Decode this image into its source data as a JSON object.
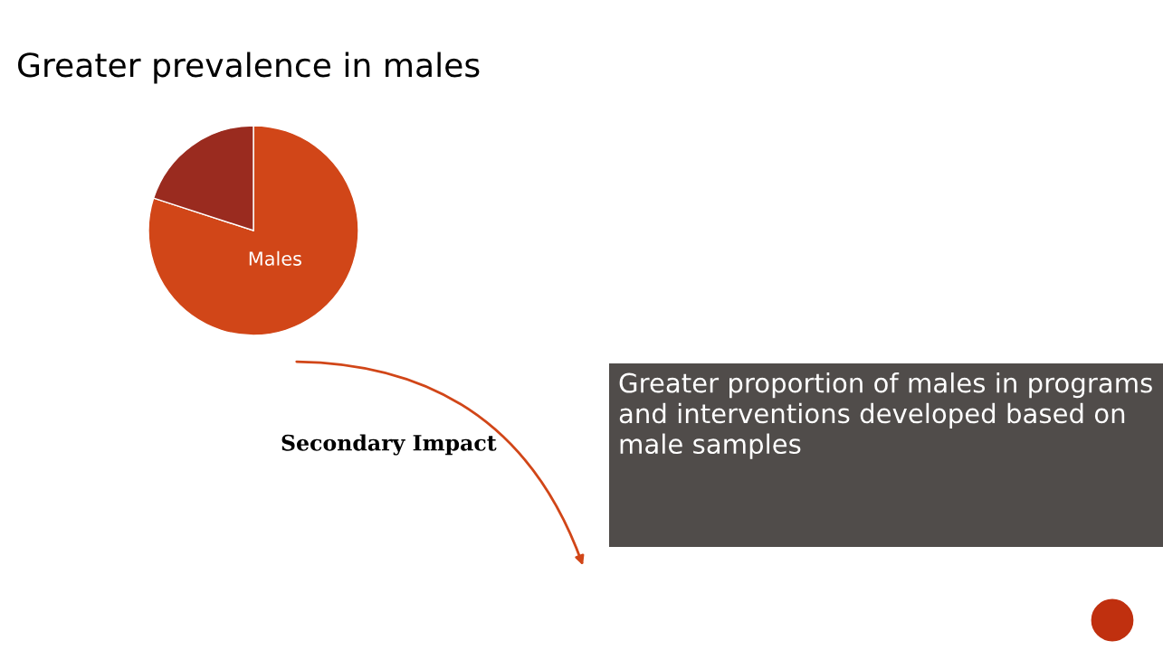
{
  "chart_data": {
    "type": "pie",
    "title": "Greater prevalence in males",
    "categories": [
      "Males",
      null
    ],
    "values": [
      80,
      20
    ],
    "colors": [
      "#d14618",
      "#9a2b1f"
    ],
    "annotations": [
      "Secondary Impact",
      "Greater proportion of males in programs and interventions developed based on male samples"
    ],
    "legend": false
  }
}
